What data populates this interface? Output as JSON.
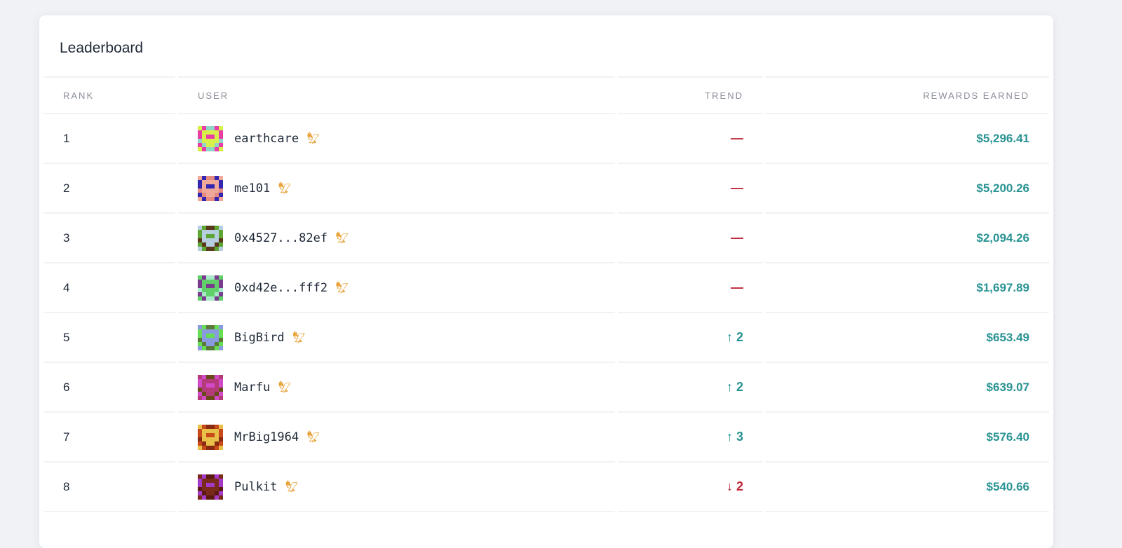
{
  "title": "Leaderboard",
  "columns": {
    "rank": "RANK",
    "user": "USER",
    "trend": "TREND",
    "rewards": "REWARDS EARNED"
  },
  "colors": {
    "up": "#2a9393",
    "down": "#c0283a",
    "same": "#c0283a",
    "reward": "#2a9393",
    "badge": "#e8a33a"
  },
  "badge_icon": "eagle-icon",
  "rows": [
    {
      "rank": "1",
      "user": "earthcare",
      "trend": "—",
      "dir": "same",
      "reward": "$5,296.41",
      "avatar": [
        "#e93ca4",
        "#d9f04a",
        "#8fd6c6"
      ]
    },
    {
      "rank": "2",
      "user": "me101",
      "trend": "—",
      "dir": "same",
      "reward": "$5,200.26",
      "avatar": [
        "#3326b0",
        "#f0a898",
        "#e58a80"
      ]
    },
    {
      "rank": "3",
      "user": "0x4527...82ef",
      "trend": "—",
      "dir": "same",
      "reward": "$2,094.26",
      "avatar": [
        "#5ea634",
        "#b5cfe0",
        "#5a3a1a"
      ]
    },
    {
      "rank": "4",
      "user": "0xd42e...fff2",
      "trend": "—",
      "dir": "same",
      "reward": "$1,697.89",
      "avatar": [
        "#7a3a8e",
        "#62d06a",
        "#a6e8c8"
      ]
    },
    {
      "rank": "5",
      "user": "BigBird",
      "trend": "2",
      "dir": "up",
      "reward": "$653.49",
      "avatar": [
        "#66dd55",
        "#8a9ae0",
        "#5a7a3a"
      ]
    },
    {
      "rank": "6",
      "user": "Marfu",
      "trend": "2",
      "dir": "up",
      "reward": "$639.07",
      "avatar": [
        "#d24ac8",
        "#b43a7a",
        "#6a4a1a"
      ]
    },
    {
      "rank": "7",
      "user": "MrBig1964",
      "trend": "3",
      "dir": "up",
      "reward": "$576.40",
      "avatar": [
        "#c84a1a",
        "#e8c04a",
        "#8a2a10"
      ]
    },
    {
      "rank": "8",
      "user": "Pulkit",
      "trend": "2",
      "dir": "down",
      "reward": "$540.66",
      "avatar": [
        "#a63ac8",
        "#7a2a1a",
        "#5a1a10"
      ]
    }
  ]
}
